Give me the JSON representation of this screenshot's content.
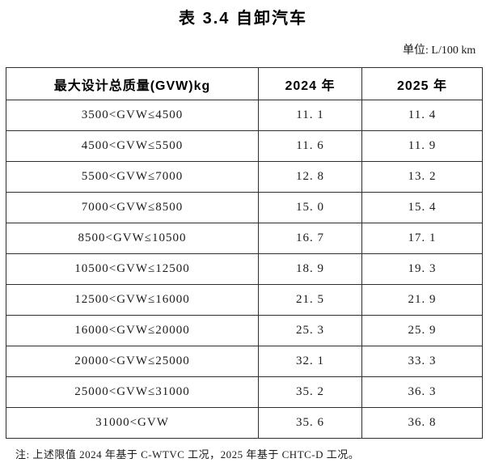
{
  "page": {
    "title": "表 3.4 自卸汽车",
    "unit_label": "单位: L/100 km",
    "note": "注: 上述限值 2024 年基于 C-WTVC 工况，2025 年基于 CHTC-D 工况。"
  },
  "table": {
    "headers": [
      "最大设计总质量(GVW)kg",
      "2024 年",
      "2025 年"
    ],
    "rows": [
      {
        "gvw_range": "3500<GVW≤4500",
        "y2024": "11. 1",
        "y2025": "11. 4"
      },
      {
        "gvw_range": "4500<GVW≤5500",
        "y2024": "11. 6",
        "y2025": "11. 9"
      },
      {
        "gvw_range": "5500<GVW≤7000",
        "y2024": "12. 8",
        "y2025": "13. 2"
      },
      {
        "gvw_range": "7000<GVW≤8500",
        "y2024": "15. 0",
        "y2025": "15. 4"
      },
      {
        "gvw_range": "8500<GVW≤10500",
        "y2024": "16. 7",
        "y2025": "17. 1"
      },
      {
        "gvw_range": "10500<GVW≤12500",
        "y2024": "18. 9",
        "y2025": "19. 3"
      },
      {
        "gvw_range": "12500<GVW≤16000",
        "y2024": "21. 5",
        "y2025": "21. 9"
      },
      {
        "gvw_range": "16000<GVW≤20000",
        "y2024": "25. 3",
        "y2025": "25. 9"
      },
      {
        "gvw_range": "20000<GVW≤25000",
        "y2024": "32. 1",
        "y2025": "33. 3"
      },
      {
        "gvw_range": "25000<GVW≤31000",
        "y2024": "35. 2",
        "y2025": "36. 3"
      },
      {
        "gvw_range": "31000<GVW",
        "y2024": "35. 6",
        "y2025": "36. 8"
      }
    ]
  }
}
